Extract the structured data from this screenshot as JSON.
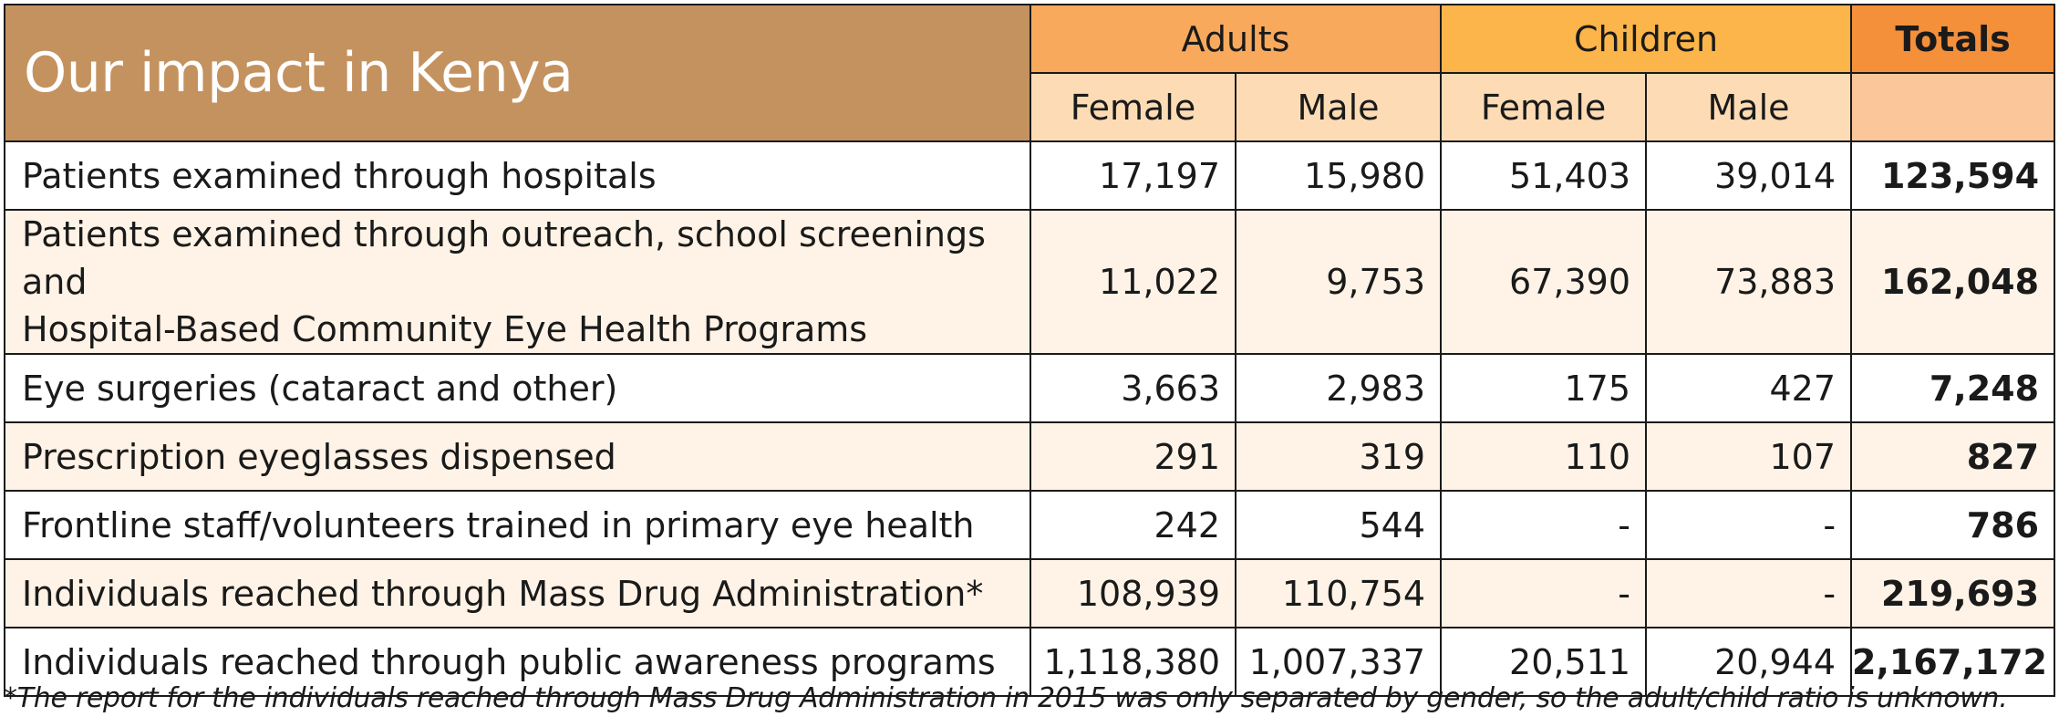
{
  "title": "Our impact in Kenya",
  "groups": {
    "adults": "Adults",
    "children": "Children",
    "totals": "Totals"
  },
  "subheaders": [
    "Female",
    "Male",
    "Female",
    "Male"
  ],
  "rows": [
    {
      "label": "Patients examined through hospitals",
      "values": [
        "17,197",
        "15,980",
        "51,403",
        "39,014"
      ],
      "total": "123,594"
    },
    {
      "label_lines": [
        "Patients examined through outreach, school screenings and",
        "Hospital-Based Community Eye Health Programs"
      ],
      "values": [
        "11,022",
        "9,753",
        "67,390",
        "73,883"
      ],
      "total": "162,048"
    },
    {
      "label": "Eye surgeries (cataract and other)",
      "values": [
        "3,663",
        "2,983",
        "175",
        "427"
      ],
      "total": "7,248"
    },
    {
      "label": "Prescription eyeglasses dispensed",
      "values": [
        "291",
        "319",
        "110",
        "107"
      ],
      "total": "827"
    },
    {
      "label": "Frontline staff/volunteers trained in primary eye health",
      "values": [
        "242",
        "544",
        "-",
        "-"
      ],
      "total": "786"
    },
    {
      "label": "Individuals reached through Mass Drug Administration*",
      "values": [
        "108,939",
        "110,754",
        "-",
        "-"
      ],
      "total": "219,693"
    },
    {
      "label": "Individuals reached through public awareness programs",
      "values": [
        "1,118,380",
        "1,007,337",
        "20,511",
        "20,944"
      ],
      "total": "2,167,172"
    }
  ],
  "footnote": "*The report for the individuals reached through Mass Drug Administration in 2015 was only separated by gender, so the adult/child ratio is unknown.",
  "colors": {
    "title_bg": "#c4925f",
    "adults_bg": "#f9a95b",
    "children_bg": "#fbb54a",
    "totals_bg": "#f48f3a",
    "subheader_bg": "#fddcb5",
    "row_tint": "#fef3e6"
  }
}
